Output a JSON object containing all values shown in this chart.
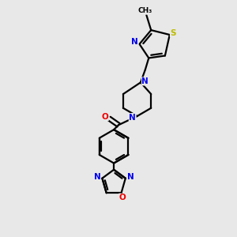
{
  "bg_color": "#e8e8e8",
  "bond_color": "#000000",
  "N_color": "#0000ee",
  "O_color": "#ee0000",
  "S_color": "#bbbb00",
  "line_width": 1.6,
  "fig_width": 3.0,
  "fig_height": 3.0,
  "dpi": 100,
  "xlim": [
    0,
    10
  ],
  "ylim": [
    0,
    10
  ]
}
